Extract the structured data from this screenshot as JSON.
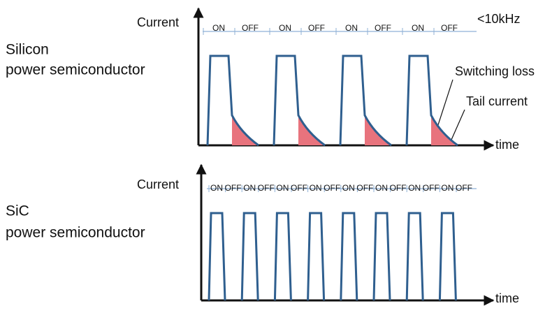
{
  "top": {
    "device": [
      "Silicon",
      "power semiconductor"
    ],
    "y_axis_label": "Current",
    "x_axis_label": "time",
    "frequency": "<10kHz",
    "phases": [
      "ON",
      "OFF",
      "ON",
      "OFF",
      "ON",
      "OFF",
      "ON",
      "OFF"
    ],
    "annotations": [
      "Switching loss",
      "Tail current"
    ]
  },
  "bottom": {
    "device": [
      "SiC",
      "power semiconductor"
    ],
    "y_axis_label": "Current",
    "x_axis_label": "time",
    "phases": [
      "ON",
      "OFF",
      "ON",
      "OFF",
      "ON",
      "OFF",
      "ON",
      "OFF",
      "ON",
      "OFF",
      "ON",
      "OFF",
      "ON",
      "OFF",
      "ON",
      "OFF"
    ]
  }
}
